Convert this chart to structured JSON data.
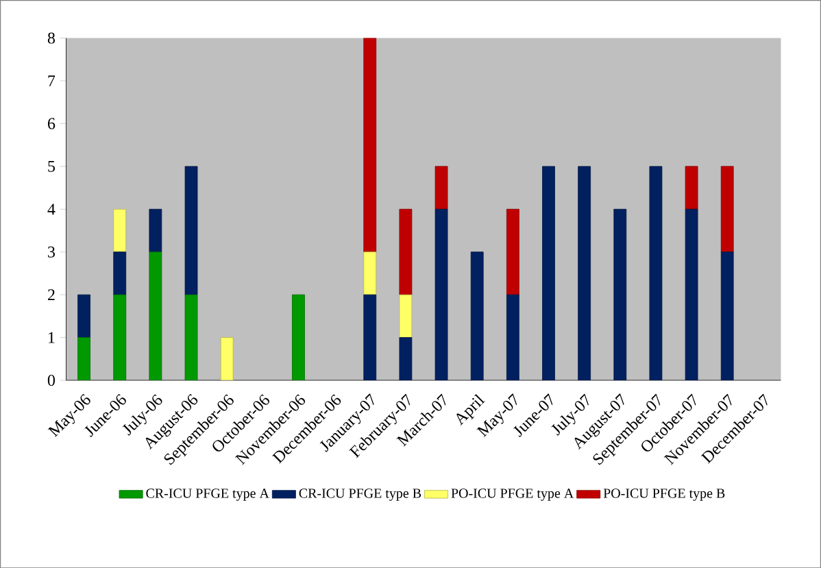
{
  "chart_data": {
    "type": "bar",
    "stacked": true,
    "categories": [
      "May-06",
      "June-06",
      "July-06",
      "August-06",
      "September-06",
      "October-06",
      "November-06",
      "December-06",
      "January-07",
      "February-07",
      "March-07",
      "April",
      "May-07",
      "June-07",
      "July-07",
      "August-07",
      "September-07",
      "October-07",
      "November-07",
      "December-07"
    ],
    "series": [
      {
        "name": "CR-ICU PFGE type A",
        "color": "#009900",
        "values": [
          1,
          2,
          3,
          2,
          0,
          0,
          2,
          0,
          0,
          0,
          0,
          0,
          0,
          0,
          0,
          0,
          0,
          0,
          0,
          0
        ]
      },
      {
        "name": "CR-ICU PFGE type B",
        "color": "#002060",
        "values": [
          1,
          1,
          1,
          3,
          0,
          0,
          0,
          0,
          2,
          1,
          4,
          3,
          2,
          5,
          5,
          4,
          5,
          4,
          3,
          0
        ]
      },
      {
        "name": "PO-ICU PFGE type A",
        "color": "#ffff66",
        "values": [
          0,
          1,
          0,
          0,
          1,
          0,
          0,
          0,
          1,
          1,
          0,
          0,
          0,
          0,
          0,
          0,
          0,
          0,
          0,
          0
        ]
      },
      {
        "name": "PO-ICU PFGE type B",
        "color": "#c00000",
        "values": [
          0,
          0,
          0,
          0,
          0,
          0,
          0,
          0,
          5,
          2,
          1,
          0,
          2,
          0,
          0,
          0,
          0,
          1,
          2,
          0
        ]
      }
    ],
    "ylim": [
      0,
      8
    ],
    "yticks": [
      0,
      1,
      2,
      3,
      4,
      5,
      6,
      7,
      8
    ],
    "grid": false,
    "legend": "bottom"
  }
}
